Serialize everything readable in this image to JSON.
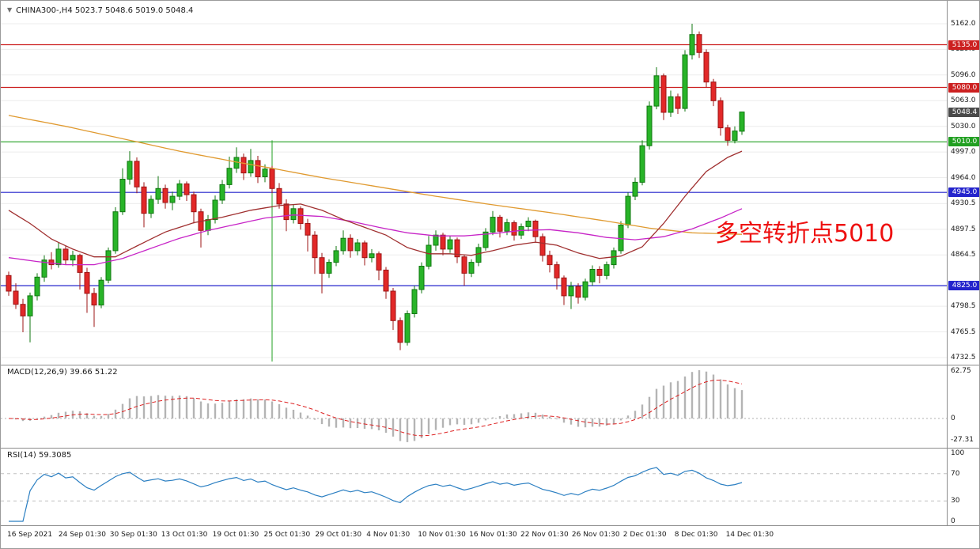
{
  "window": {
    "title": "CHINA300-,H4 5023.7 5048.6 5019.0 5048.4",
    "collapse_icon": "▼"
  },
  "annotation": {
    "text": "多空转折点5010",
    "color": "#ee1111"
  },
  "price_axis": {
    "gridline_labels": [
      {
        "value": 5162.0,
        "label": "5162.0"
      },
      {
        "value": 5129.0,
        "label": "5129.0"
      },
      {
        "value": 5096.0,
        "label": "5096.0"
      },
      {
        "value": 5063.0,
        "label": "5063.0"
      },
      {
        "value": 5030.0,
        "label": "5030.0"
      },
      {
        "value": 4997.0,
        "label": "4997.0"
      },
      {
        "value": 4964.0,
        "label": "4964.0"
      },
      {
        "value": 4930.5,
        "label": "4930.5"
      },
      {
        "value": 4897.5,
        "label": "4897.5"
      },
      {
        "value": 4864.5,
        "label": "4864.5"
      },
      {
        "value": 4798.5,
        "label": "4798.5"
      },
      {
        "value": 4765.5,
        "label": "4765.5"
      },
      {
        "value": 4732.5,
        "label": "4732.5"
      }
    ],
    "badges": [
      {
        "value": 5135.0,
        "label": "5135.0",
        "color": "#cc2020"
      },
      {
        "value": 5080.0,
        "label": "5080.0",
        "color": "#cc2020"
      },
      {
        "value": 5048.4,
        "label": "5048.4",
        "color": "#4a4a4a"
      },
      {
        "value": 5010.0,
        "label": "5010.0",
        "color": "#22a022"
      },
      {
        "value": 4945.0,
        "label": "4945.0",
        "color": "#2424cc"
      },
      {
        "value": 4825.0,
        "label": "4825.0",
        "color": "#2424cc"
      }
    ]
  },
  "time_axis": {
    "labels": [
      "16 Sep 2021",
      "24 Sep 01:30",
      "30 Sep 01:30",
      "13 Oct 01:30",
      "19 Oct 01:30",
      "25 Oct 01:30",
      "29 Oct 01:30",
      "4 Nov 01:30",
      "10 Nov 01:30",
      "16 Nov 01:30",
      "22 Nov 01:30",
      "26 Nov 01:30",
      "2 Dec 01:30",
      "8 Dec 01:30",
      "14 Dec 01:30"
    ]
  },
  "macd_panel": {
    "label": "MACD(12,26,9) 39.66 51.22",
    "axis_labels": [
      {
        "value": 62.75,
        "label": "62.75"
      },
      {
        "value": 0,
        "label": "0"
      },
      {
        "value": -27.31,
        "label": "-27.31"
      }
    ]
  },
  "rsi_panel": {
    "label": "RSI(14) 59.3085",
    "axis_labels": [
      {
        "value": 100,
        "label": "100"
      },
      {
        "value": 70,
        "label": "70"
      },
      {
        "value": 30,
        "label": "30"
      },
      {
        "value": 0,
        "label": "0"
      }
    ]
  },
  "chart_data": {
    "type": "candlestick",
    "symbol": "CHINA300-",
    "timeframe": "H4",
    "current_bar": {
      "open": 5023.7,
      "high": 5048.6,
      "low": 5019.0,
      "close": 5048.4
    },
    "price_axis_range": {
      "min": 4732.5,
      "max": 5162.0,
      "grid_step": 33
    },
    "colors": {
      "up_fill": "#28b428",
      "up_stroke": "#117711",
      "down_fill": "#e22828",
      "down_stroke": "#9c1515"
    },
    "candles": [
      [
        4838,
        4843,
        4812,
        4818
      ],
      [
        4818,
        4828,
        4795,
        4801
      ],
      [
        4801,
        4808,
        4765,
        4786
      ],
      [
        4786,
        4816,
        4752,
        4812
      ],
      [
        4812,
        4841,
        4806,
        4836
      ],
      [
        4836,
        4864,
        4830,
        4858
      ],
      [
        4858,
        4868,
        4846,
        4852
      ],
      [
        4852,
        4880,
        4848,
        4872
      ],
      [
        4872,
        4876,
        4852,
        4858
      ],
      [
        4858,
        4870,
        4850,
        4864
      ],
      [
        4864,
        4866,
        4820,
        4842
      ],
      [
        4842,
        4848,
        4790,
        4815
      ],
      [
        4815,
        4822,
        4772,
        4800
      ],
      [
        4800,
        4836,
        4796,
        4832
      ],
      [
        4832,
        4874,
        4828,
        4870
      ],
      [
        4870,
        4926,
        4866,
        4920
      ],
      [
        4920,
        4976,
        4916,
        4962
      ],
      [
        4962,
        4998,
        4955,
        4985
      ],
      [
        4985,
        4990,
        4944,
        4952
      ],
      [
        4952,
        4958,
        4900,
        4918
      ],
      [
        4918,
        4941,
        4912,
        4936
      ],
      [
        4936,
        4966,
        4930,
        4950
      ],
      [
        4950,
        4955,
        4924,
        4932
      ],
      [
        4932,
        4946,
        4922,
        4940
      ],
      [
        4940,
        4961,
        4935,
        4956
      ],
      [
        4956,
        4959,
        4934,
        4942
      ],
      [
        4942,
        4946,
        4905,
        4920
      ],
      [
        4920,
        4924,
        4874,
        4896
      ],
      [
        4896,
        4916,
        4890,
        4910
      ],
      [
        4910,
        4941,
        4905,
        4935
      ],
      [
        4935,
        4961,
        4930,
        4955
      ],
      [
        4955,
        4991,
        4950,
        4976
      ],
      [
        4976,
        5003,
        4970,
        4990
      ],
      [
        4990,
        4995,
        4961,
        4970
      ],
      [
        4970,
        5001,
        4965,
        4986
      ],
      [
        4986,
        4992,
        4957,
        4965
      ],
      [
        4965,
        4981,
        4958,
        4975
      ],
      [
        4975,
        4979,
        4944,
        4950
      ],
      [
        4950,
        4957,
        4924,
        4930
      ],
      [
        4930,
        4936,
        4895,
        4910
      ],
      [
        4910,
        4929,
        4905,
        4924
      ],
      [
        4924,
        4927,
        4897,
        4905
      ],
      [
        4905,
        4911,
        4869,
        4890
      ],
      [
        4890,
        4895,
        4840,
        4861
      ],
      [
        4861,
        4867,
        4815,
        4841
      ],
      [
        4841,
        4859,
        4835,
        4855
      ],
      [
        4855,
        4876,
        4850,
        4870
      ],
      [
        4870,
        4896,
        4865,
        4886
      ],
      [
        4886,
        4891,
        4861,
        4870
      ],
      [
        4870,
        4885,
        4864,
        4880
      ],
      [
        4880,
        4883,
        4851,
        4861
      ],
      [
        4861,
        4872,
        4855,
        4866
      ],
      [
        4866,
        4869,
        4832,
        4845
      ],
      [
        4845,
        4849,
        4808,
        4818
      ],
      [
        4818,
        4822,
        4768,
        4780
      ],
      [
        4780,
        4784,
        4742,
        4752
      ],
      [
        4752,
        4793,
        4748,
        4789
      ],
      [
        4789,
        4825,
        4784,
        4820
      ],
      [
        4820,
        4855,
        4815,
        4850
      ],
      [
        4850,
        4889,
        4846,
        4877
      ],
      [
        4877,
        4896,
        4870,
        4890
      ],
      [
        4890,
        4893,
        4864,
        4872
      ],
      [
        4872,
        4889,
        4867,
        4884
      ],
      [
        4884,
        4887,
        4854,
        4862
      ],
      [
        4862,
        4865,
        4825,
        4841
      ],
      [
        4841,
        4859,
        4836,
        4855
      ],
      [
        4855,
        4879,
        4850,
        4874
      ],
      [
        4874,
        4899,
        4870,
        4894
      ],
      [
        4894,
        4921,
        4890,
        4913
      ],
      [
        4913,
        4916,
        4887,
        4895
      ],
      [
        4895,
        4911,
        4890,
        4906
      ],
      [
        4906,
        4909,
        4883,
        4890
      ],
      [
        4890,
        4905,
        4885,
        4901
      ],
      [
        4901,
        4913,
        4895,
        4908
      ],
      [
        4908,
        4910,
        4880,
        4888
      ],
      [
        4888,
        4892,
        4856,
        4864
      ],
      [
        4864,
        4870,
        4842,
        4852
      ],
      [
        4852,
        4856,
        4820,
        4835
      ],
      [
        4835,
        4838,
        4800,
        4812
      ],
      [
        4812,
        4830,
        4795,
        4824
      ],
      [
        4824,
        4828,
        4802,
        4810
      ],
      [
        4810,
        4834,
        4806,
        4830
      ],
      [
        4830,
        4851,
        4825,
        4846
      ],
      [
        4846,
        4850,
        4828,
        4838
      ],
      [
        4838,
        4856,
        4833,
        4852
      ],
      [
        4852,
        4874,
        4847,
        4870
      ],
      [
        4870,
        4908,
        4866,
        4903
      ],
      [
        4903,
        4945,
        4899,
        4940
      ],
      [
        4940,
        4964,
        4935,
        4958
      ],
      [
        4958,
        5012,
        4954,
        5005
      ],
      [
        5005,
        5062,
        5000,
        5056
      ],
      [
        5056,
        5106,
        5052,
        5095
      ],
      [
        5095,
        5098,
        5038,
        5048
      ],
      [
        5048,
        5076,
        5042,
        5068
      ],
      [
        5068,
        5072,
        5046,
        5053
      ],
      [
        5053,
        5128,
        5049,
        5122
      ],
      [
        5122,
        5162,
        5116,
        5148
      ],
      [
        5148,
        5152,
        5118,
        5125
      ],
      [
        5125,
        5129,
        5080,
        5087
      ],
      [
        5087,
        5091,
        5056,
        5063
      ],
      [
        5063,
        5067,
        5018,
        5028
      ],
      [
        5028,
        5032,
        5005,
        5012
      ],
      [
        5012,
        5030,
        5008,
        5024
      ],
      [
        5023.7,
        5048.6,
        5019.0,
        5048.4
      ]
    ],
    "horizontal_levels": [
      {
        "price": 5135.0,
        "color": "#cc2020"
      },
      {
        "price": 5080.0,
        "color": "#cc2020"
      },
      {
        "price": 5010.0,
        "color": "#22a022"
      },
      {
        "price": 4945.0,
        "color": "#2424cc"
      },
      {
        "price": 4825.0,
        "color": "#2424cc"
      }
    ],
    "vertical_line": {
      "index": 37,
      "color": "#22a022"
    },
    "moving_averages": [
      {
        "name": "slow",
        "color": "#e09a30",
        "points": [
          [
            0,
            5044
          ],
          [
            8,
            5030
          ],
          [
            16,
            5014
          ],
          [
            24,
            4998
          ],
          [
            32,
            4984
          ],
          [
            37,
            4976
          ],
          [
            44,
            4964
          ],
          [
            52,
            4952
          ],
          [
            60,
            4940
          ],
          [
            68,
            4929
          ],
          [
            76,
            4919
          ],
          [
            84,
            4908
          ],
          [
            90,
            4899
          ],
          [
            96,
            4893
          ],
          [
            103,
            4891
          ]
        ]
      },
      {
        "name": "mid",
        "color": "#c724c7",
        "points": [
          [
            0,
            4861
          ],
          [
            4,
            4856
          ],
          [
            8,
            4852
          ],
          [
            12,
            4852
          ],
          [
            16,
            4860
          ],
          [
            20,
            4873
          ],
          [
            24,
            4886
          ],
          [
            28,
            4896
          ],
          [
            32,
            4904
          ],
          [
            36,
            4912
          ],
          [
            40,
            4916
          ],
          [
            44,
            4914
          ],
          [
            48,
            4908
          ],
          [
            52,
            4900
          ],
          [
            56,
            4893
          ],
          [
            60,
            4889
          ],
          [
            64,
            4889
          ],
          [
            68,
            4892
          ],
          [
            72,
            4896
          ],
          [
            76,
            4897
          ],
          [
            80,
            4893
          ],
          [
            84,
            4887
          ],
          [
            88,
            4884
          ],
          [
            92,
            4888
          ],
          [
            96,
            4898
          ],
          [
            100,
            4912
          ],
          [
            103,
            4924
          ]
        ]
      },
      {
        "name": "fast",
        "color": "#a03030",
        "points": [
          [
            0,
            4922
          ],
          [
            3,
            4905
          ],
          [
            6,
            4885
          ],
          [
            9,
            4872
          ],
          [
            12,
            4862
          ],
          [
            15,
            4862
          ],
          [
            18,
            4876
          ],
          [
            22,
            4894
          ],
          [
            26,
            4906
          ],
          [
            30,
            4913
          ],
          [
            34,
            4922
          ],
          [
            38,
            4928
          ],
          [
            41,
            4930
          ],
          [
            44,
            4922
          ],
          [
            47,
            4910
          ],
          [
            50,
            4900
          ],
          [
            53,
            4890
          ],
          [
            56,
            4874
          ],
          [
            59,
            4866
          ],
          [
            62,
            4866
          ],
          [
            65,
            4864
          ],
          [
            68,
            4870
          ],
          [
            71,
            4877
          ],
          [
            74,
            4881
          ],
          [
            77,
            4877
          ],
          [
            80,
            4867
          ],
          [
            83,
            4860
          ],
          [
            86,
            4863
          ],
          [
            89,
            4875
          ],
          [
            92,
            4905
          ],
          [
            95,
            4940
          ],
          [
            98,
            4972
          ],
          [
            101,
            4990
          ],
          [
            103,
            4998
          ]
        ]
      }
    ],
    "indicators": {
      "macd": {
        "params": [
          12,
          26,
          9
        ],
        "main_value": 39.66,
        "signal_value": 51.22,
        "axis": [
          62.75,
          0,
          -27.31
        ],
        "histogram_color": "#b4b4b4",
        "signal_color": "#dd2222"
      },
      "rsi": {
        "params": [
          14
        ],
        "value": 59.3085,
        "levels": [
          70,
          30
        ],
        "axis": [
          100,
          70,
          30,
          0
        ],
        "line_color": "#2b7fc2"
      }
    }
  }
}
